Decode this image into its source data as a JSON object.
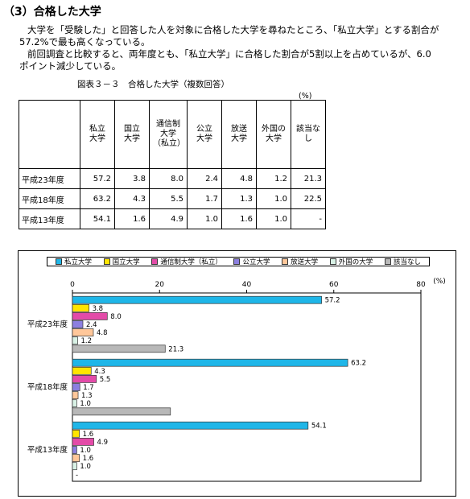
{
  "heading": "（3）合格した大学",
  "paragraph1": [
    "大学を「受験した」と回答した人を対象に合格した大学を尋ねたところ、「私立大学」とする割合が",
    "57.2%で最も高くなっている。"
  ],
  "paragraph2": [
    "前回調査と比較すると、両年度とも、「私立大学」に合格した割合が5割以上を占めているが、6.0",
    "ポイント減少している。"
  ],
  "table": {
    "caption": "図表３－３　合格した大学（複数回答）",
    "unit": "(%)",
    "headers": [
      [
        "私立",
        "大学"
      ],
      [
        "国立",
        "大学"
      ],
      [
        "通信制",
        "大学",
        "（私立）"
      ],
      [
        "公立",
        "大学"
      ],
      [
        "放送",
        "大学"
      ],
      [
        "外国の",
        "大学"
      ],
      [
        "該当な",
        "し"
      ]
    ],
    "rows": [
      {
        "label": "平成23年度",
        "values": [
          "57.2",
          "3.8",
          "8.0",
          "2.4",
          "4.8",
          "1.2",
          "21.3"
        ]
      },
      {
        "label": "平成18年度",
        "values": [
          "63.2",
          "4.3",
          "5.5",
          "1.7",
          "1.3",
          "1.0",
          "22.5"
        ]
      },
      {
        "label": "平成13年度",
        "values": [
          "54.1",
          "1.6",
          "4.9",
          "1.0",
          "1.6",
          "1.0",
          "-"
        ]
      }
    ]
  },
  "chart_data": {
    "type": "bar",
    "orientation": "horizontal",
    "unit": "%",
    "xlim": [
      0,
      80
    ],
    "xticks": [
      0,
      20,
      40,
      60,
      80
    ],
    "categories": [
      "平成23年度",
      "平成18年度",
      "平成13年度"
    ],
    "legend_position": "top",
    "series": [
      {
        "name": "私立大学",
        "color": "#1fb6e8",
        "values": [
          57.2,
          63.2,
          54.1
        ],
        "labels": [
          "57.2",
          "63.2",
          "54.1"
        ]
      },
      {
        "name": "国立大学",
        "color": "#ffe500",
        "values": [
          3.8,
          4.3,
          1.6
        ],
        "labels": [
          "3.8",
          "4.3",
          "1.6"
        ]
      },
      {
        "name": "通信制大学（私立）",
        "color": "#e34ba8",
        "values": [
          8.0,
          5.5,
          4.9
        ],
        "labels": [
          "8.0",
          "5.5",
          "4.9"
        ]
      },
      {
        "name": "公立大学",
        "color": "#8c7fe0",
        "values": [
          2.4,
          1.7,
          1.0
        ],
        "labels": [
          "2.4",
          "1.7",
          "1.0"
        ]
      },
      {
        "name": "放送大学",
        "color": "#ffc79a",
        "values": [
          4.8,
          1.3,
          1.6
        ],
        "labels": [
          "4.8",
          "1.3",
          "1.6"
        ]
      },
      {
        "name": "外国の大学",
        "color": "#d9f2e6",
        "values": [
          1.2,
          1.0,
          1.0
        ],
        "labels": [
          "1.2",
          "1.0",
          "1.0"
        ]
      },
      {
        "name": "該当なし",
        "color": "#b8b8b8",
        "values": [
          21.3,
          22.5,
          0
        ],
        "labels": [
          "21.3",
          "",
          ""
        ]
      }
    ],
    "extra_labels": [
      {
        "category": "平成13年度",
        "series": "該当なし",
        "text": "-"
      }
    ]
  }
}
